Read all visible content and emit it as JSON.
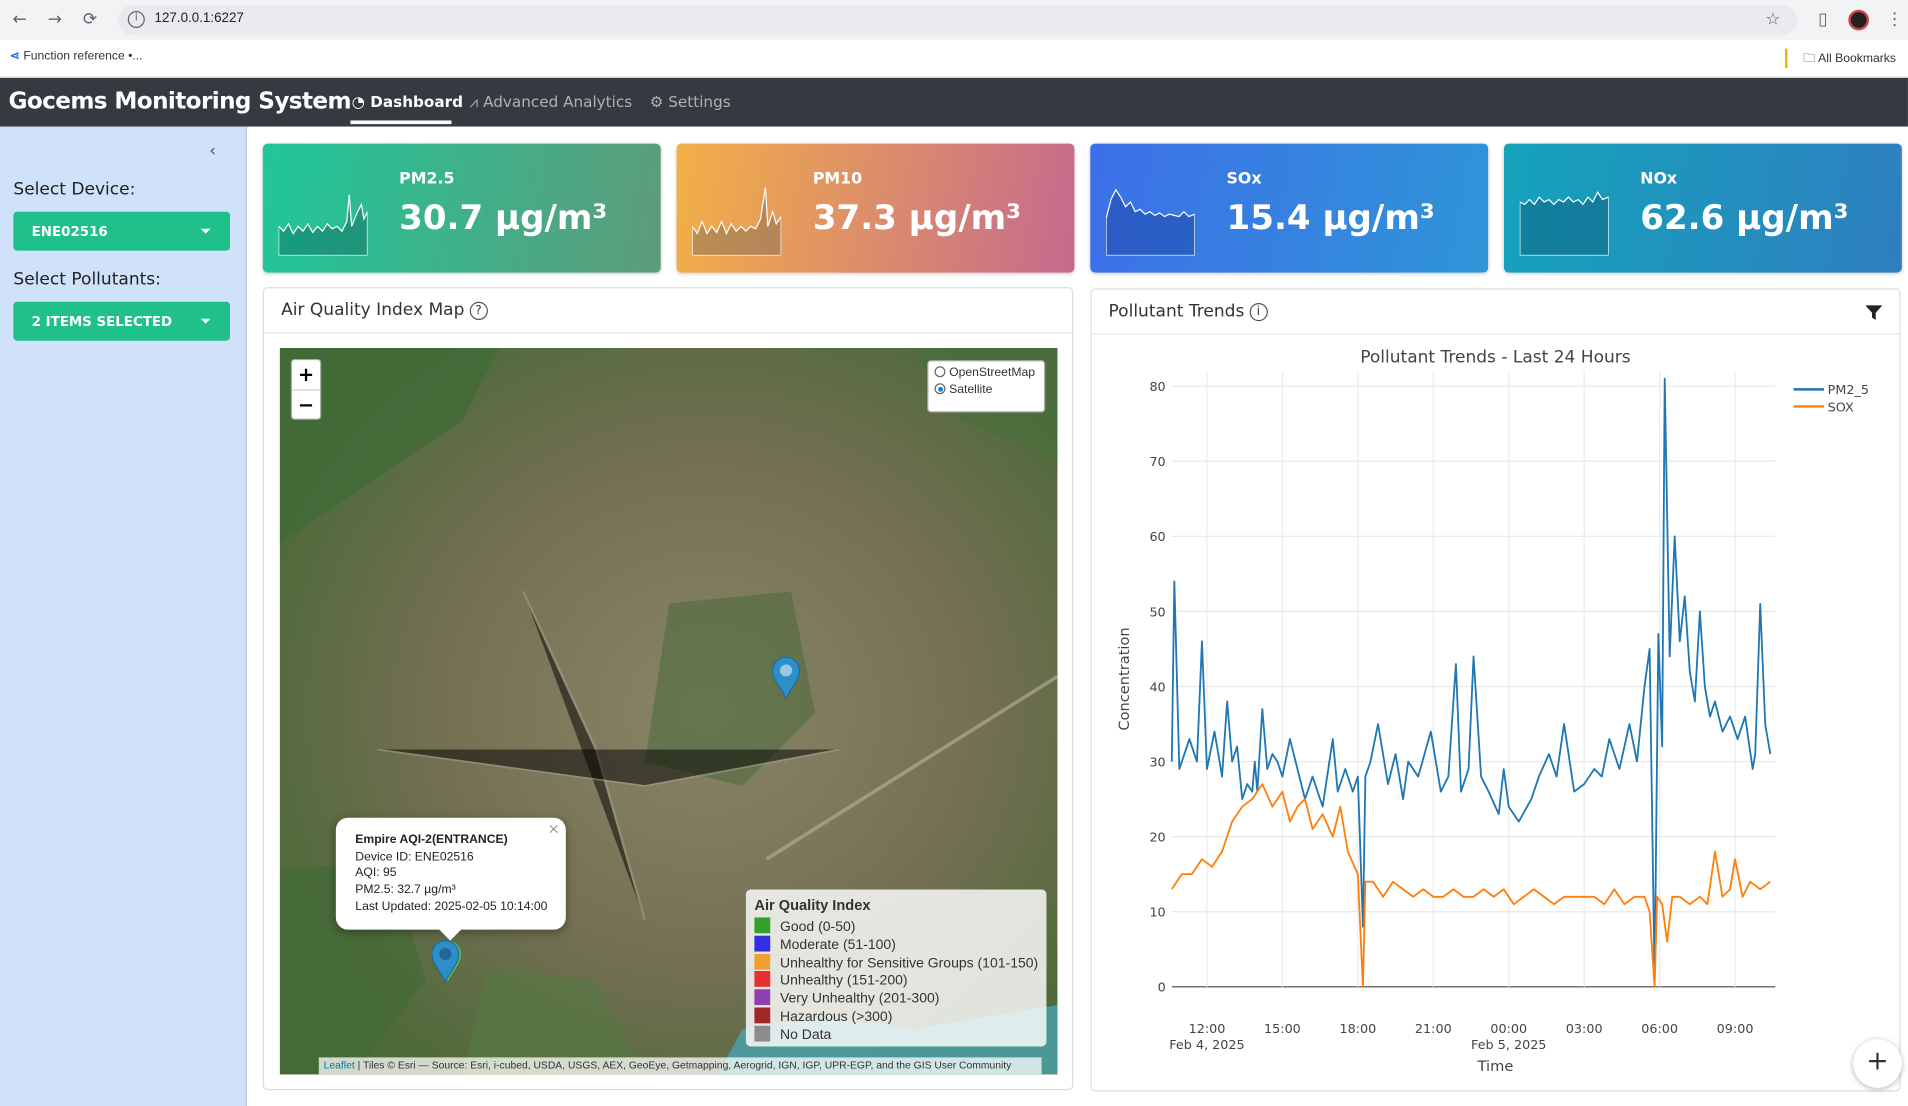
{
  "browser": {
    "url": "127.0.0.1:6227",
    "bookmark": "Function reference •...",
    "all_bookmarks": "All Bookmarks"
  },
  "app": {
    "title": "Gocems Monitoring System",
    "tabs": [
      {
        "label": "Dashboard",
        "icon": "dashboard-icon",
        "active": true
      },
      {
        "label": "Advanced Analytics",
        "icon": "chart-icon",
        "active": false
      },
      {
        "label": "Settings",
        "icon": "gear-icon",
        "active": false
      }
    ]
  },
  "sidebar": {
    "device_label": "Select Device:",
    "device_value": "ENE02516",
    "pollutants_label": "Select Pollutants:",
    "pollutants_value": "2 ITEMS SELECTED"
  },
  "cards": [
    {
      "name": "PM2.5",
      "value": "30.7 µg/m³",
      "gradient": [
        "#1fc79a",
        "#5e9b7a"
      ]
    },
    {
      "name": "PM10",
      "value": "37.3 µg/m³",
      "gradient": [
        "#f3b046",
        "#c46a8f"
      ]
    },
    {
      "name": "SOx",
      "value": "15.4 µg/m³",
      "gradient": [
        "#3d6fe8",
        "#2f95d8"
      ]
    },
    {
      "name": "NOx",
      "value": "62.6 µg/m³",
      "gradient": [
        "#14a3bb",
        "#2e7fc0"
      ]
    }
  ],
  "map_panel": {
    "title": "Air Quality Index Map",
    "layers": [
      "OpenStreetMap",
      "Satellite"
    ],
    "selected_layer": "Satellite",
    "popup": {
      "title": "Empire AQI-2(ENTRANCE)",
      "device": "Device ID: ENE02516",
      "aqi": "AQI: 95",
      "pm25": "PM2.5: 32.7 µg/m³",
      "updated": "Last Updated: 2025-02-05 10:14:00"
    },
    "legend": {
      "title": "Air Quality Index",
      "items": [
        {
          "label": "Good (0-50)",
          "color": "#33a02c"
        },
        {
          "label": "Moderate (51-100)",
          "color": "#3030e0"
        },
        {
          "label": "Unhealthy for Sensitive Groups (101-150)",
          "color": "#f0a030"
        },
        {
          "label": "Unhealthy (151-200)",
          "color": "#e83030"
        },
        {
          "label": "Very Unhealthy (201-300)",
          "color": "#8e3fb0"
        },
        {
          "label": "Hazardous (>300)",
          "color": "#a02828"
        },
        {
          "label": "No Data",
          "color": "#8c8c8c"
        }
      ]
    },
    "attribution_link": "Leaflet",
    "attribution": "| Tiles © Esri — Source: Esri, i-cubed, USDA, USGS, AEX, GeoEye, Getmapping, Aerogrid, IGN, IGP, UPR-EGP, and the GIS User Community",
    "zoom_in": "+",
    "zoom_out": "−"
  },
  "trends_panel": {
    "title": "Pollutant Trends"
  },
  "chart_data": {
    "type": "line",
    "title": "Pollutant Trends - Last 24 Hours",
    "xlabel": "Time",
    "ylabel": "Concentration",
    "ylim": [
      0,
      82
    ],
    "yticks": [
      0,
      10,
      20,
      30,
      40,
      50,
      60,
      70,
      80
    ],
    "x_ticks": [
      {
        "hour": 12,
        "label": "12:00",
        "sub": "Feb 4, 2025"
      },
      {
        "hour": 15,
        "label": "15:00",
        "sub": ""
      },
      {
        "hour": 18,
        "label": "18:00",
        "sub": ""
      },
      {
        "hour": 21,
        "label": "21:00",
        "sub": ""
      },
      {
        "hour": 24,
        "label": "00:00",
        "sub": "Feb 5, 2025"
      },
      {
        "hour": 27,
        "label": "03:00",
        "sub": ""
      },
      {
        "hour": 30,
        "label": "06:00",
        "sub": ""
      },
      {
        "hour": 33,
        "label": "09:00",
        "sub": ""
      }
    ],
    "xlim_hours": [
      10.6,
      34.6
    ],
    "legend_position": "top-right",
    "series": [
      {
        "name": "PM2_5",
        "color": "#1f77b4",
        "points": [
          [
            10.6,
            30
          ],
          [
            10.7,
            54
          ],
          [
            10.9,
            29
          ],
          [
            11.3,
            33
          ],
          [
            11.6,
            30
          ],
          [
            11.8,
            46
          ],
          [
            12.0,
            29
          ],
          [
            12.3,
            34
          ],
          [
            12.5,
            30
          ],
          [
            12.6,
            28
          ],
          [
            12.8,
            38
          ],
          [
            13.0,
            30
          ],
          [
            13.2,
            32
          ],
          [
            13.4,
            25
          ],
          [
            13.6,
            27
          ],
          [
            13.8,
            26
          ],
          [
            13.9,
            30
          ],
          [
            14.0,
            26
          ],
          [
            14.2,
            37
          ],
          [
            14.4,
            29
          ],
          [
            14.6,
            31
          ],
          [
            14.8,
            30
          ],
          [
            15.0,
            28
          ],
          [
            15.3,
            33
          ],
          [
            15.6,
            29
          ],
          [
            15.9,
            25
          ],
          [
            16.2,
            28
          ],
          [
            16.6,
            24
          ],
          [
            17.0,
            33
          ],
          [
            17.2,
            26
          ],
          [
            17.5,
            29
          ],
          [
            17.8,
            26
          ],
          [
            18.0,
            28
          ],
          [
            18.2,
            8
          ],
          [
            18.3,
            28
          ],
          [
            18.5,
            30
          ],
          [
            18.8,
            35
          ],
          [
            19.2,
            27
          ],
          [
            19.5,
            31
          ],
          [
            19.8,
            25
          ],
          [
            20.0,
            30
          ],
          [
            20.4,
            28
          ],
          [
            20.9,
            34
          ],
          [
            21.3,
            26
          ],
          [
            21.6,
            28
          ],
          [
            21.9,
            43
          ],
          [
            22.1,
            26
          ],
          [
            22.4,
            29
          ],
          [
            22.6,
            44
          ],
          [
            22.9,
            28
          ],
          [
            23.2,
            26
          ],
          [
            23.6,
            23
          ],
          [
            23.8,
            29
          ],
          [
            24.0,
            24
          ],
          [
            24.4,
            22
          ],
          [
            24.9,
            25
          ],
          [
            25.2,
            28
          ],
          [
            25.6,
            31
          ],
          [
            25.9,
            28
          ],
          [
            26.2,
            35
          ],
          [
            26.6,
            26
          ],
          [
            27.0,
            27
          ],
          [
            27.4,
            29
          ],
          [
            27.7,
            28
          ],
          [
            28.0,
            33
          ],
          [
            28.4,
            29
          ],
          [
            28.8,
            35
          ],
          [
            29.1,
            30
          ],
          [
            29.4,
            40
          ],
          [
            29.6,
            45
          ],
          [
            29.8,
            1
          ],
          [
            29.95,
            47
          ],
          [
            30.1,
            32
          ],
          [
            30.2,
            81
          ],
          [
            30.4,
            44
          ],
          [
            30.6,
            60
          ],
          [
            30.8,
            46
          ],
          [
            31.0,
            52
          ],
          [
            31.2,
            42
          ],
          [
            31.4,
            38
          ],
          [
            31.6,
            50
          ],
          [
            31.8,
            40
          ],
          [
            32.0,
            36
          ],
          [
            32.2,
            38
          ],
          [
            32.5,
            34
          ],
          [
            32.8,
            36
          ],
          [
            33.1,
            33
          ],
          [
            33.4,
            36
          ],
          [
            33.7,
            29
          ],
          [
            33.8,
            31
          ],
          [
            34.0,
            51
          ],
          [
            34.2,
            35
          ],
          [
            34.4,
            31
          ]
        ]
      },
      {
        "name": "SOX",
        "color": "#ff7f0e",
        "points": [
          [
            10.6,
            13
          ],
          [
            11.0,
            15
          ],
          [
            11.4,
            15
          ],
          [
            11.8,
            17
          ],
          [
            12.2,
            16
          ],
          [
            12.6,
            18
          ],
          [
            13.0,
            22
          ],
          [
            13.4,
            24
          ],
          [
            13.8,
            25
          ],
          [
            14.2,
            27
          ],
          [
            14.6,
            24
          ],
          [
            15.0,
            26
          ],
          [
            15.3,
            22
          ],
          [
            15.6,
            24
          ],
          [
            15.9,
            25
          ],
          [
            16.2,
            21
          ],
          [
            16.6,
            23
          ],
          [
            17.0,
            20
          ],
          [
            17.3,
            24
          ],
          [
            17.6,
            18
          ],
          [
            18.0,
            15
          ],
          [
            18.2,
            0
          ],
          [
            18.3,
            14
          ],
          [
            18.6,
            14
          ],
          [
            19.0,
            12
          ],
          [
            19.4,
            14
          ],
          [
            19.8,
            13
          ],
          [
            20.2,
            12
          ],
          [
            20.6,
            13
          ],
          [
            21.0,
            12
          ],
          [
            21.4,
            12
          ],
          [
            21.8,
            13
          ],
          [
            22.2,
            12
          ],
          [
            22.6,
            12
          ],
          [
            23.0,
            13
          ],
          [
            23.4,
            12
          ],
          [
            23.8,
            13
          ],
          [
            24.2,
            11
          ],
          [
            24.6,
            12
          ],
          [
            25.0,
            13
          ],
          [
            25.4,
            12
          ],
          [
            25.8,
            11
          ],
          [
            26.2,
            12
          ],
          [
            26.6,
            12
          ],
          [
            27.0,
            12
          ],
          [
            27.4,
            12
          ],
          [
            27.8,
            11
          ],
          [
            28.2,
            13
          ],
          [
            28.6,
            11
          ],
          [
            29.0,
            12
          ],
          [
            29.4,
            12
          ],
          [
            29.6,
            10
          ],
          [
            29.8,
            0
          ],
          [
            29.9,
            12
          ],
          [
            30.1,
            11
          ],
          [
            30.3,
            6
          ],
          [
            30.5,
            12
          ],
          [
            30.8,
            12
          ],
          [
            31.2,
            11
          ],
          [
            31.6,
            12
          ],
          [
            31.9,
            11
          ],
          [
            32.2,
            18
          ],
          [
            32.5,
            12
          ],
          [
            32.8,
            13
          ],
          [
            33.0,
            17
          ],
          [
            33.3,
            12
          ],
          [
            33.6,
            14
          ],
          [
            34.0,
            13
          ],
          [
            34.4,
            14
          ]
        ]
      }
    ]
  },
  "fab_label": "+"
}
